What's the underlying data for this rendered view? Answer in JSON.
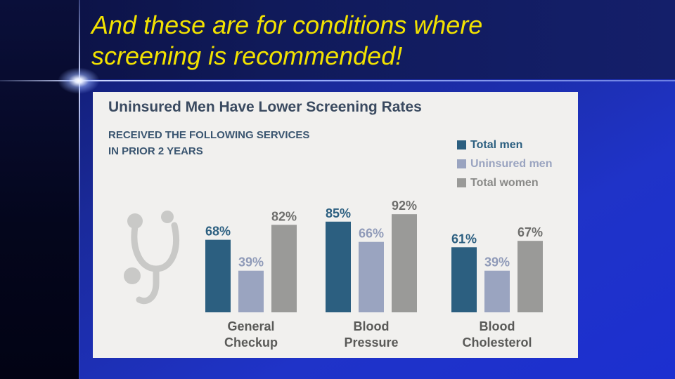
{
  "slide": {
    "title_line1": "And these are for conditions where",
    "title_line2": "screening is recommended!"
  },
  "colors": {
    "title": "#f2e200",
    "total_men": "#2c5f80",
    "uninsured_men": "#9aa4c0",
    "total_women": "#9a9a98"
  },
  "chart_data": {
    "type": "bar",
    "title": "Uninsured Men Have Lower Screening Rates",
    "subtitle_line1": "RECEIVED THE FOLLOWING SERVICES",
    "subtitle_line2": "IN PRIOR 2 YEARS",
    "categories": [
      [
        "General",
        "Checkup"
      ],
      [
        "Blood",
        "Pressure"
      ],
      [
        "Blood",
        "Cholesterol"
      ]
    ],
    "series": [
      {
        "name": "Total men",
        "values": [
          68,
          85,
          61
        ],
        "labels": [
          "68%",
          "85%",
          "61%"
        ]
      },
      {
        "name": "Uninsured men",
        "values": [
          39,
          66,
          39
        ],
        "labels": [
          "39%",
          "66%",
          "39%"
        ]
      },
      {
        "name": "Total women",
        "values": [
          82,
          92,
          67
        ],
        "labels": [
          "82%",
          "92%",
          "67%"
        ]
      }
    ],
    "ylim": [
      0,
      100
    ],
    "legend_position": "top-right",
    "grid": false,
    "icon": "stethoscope-icon"
  }
}
